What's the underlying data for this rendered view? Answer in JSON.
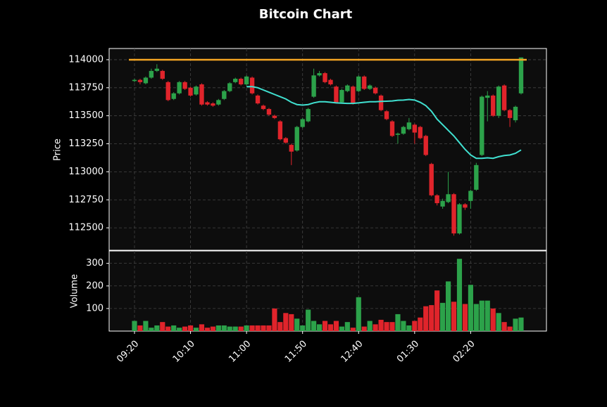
{
  "chart_data": {
    "type": "candlestick",
    "title": "Bitcoin Chart",
    "y_label": "Price",
    "volume_label": "Volume",
    "x": [
      "09:20",
      "09:25",
      "09:30",
      "09:35",
      "09:40",
      "09:45",
      "09:50",
      "09:55",
      "10:00",
      "10:05",
      "10:10",
      "10:15",
      "10:20",
      "10:25",
      "10:30",
      "10:35",
      "10:40",
      "10:45",
      "10:50",
      "10:55",
      "11:00",
      "11:05",
      "11:10",
      "11:15",
      "11:20",
      "11:25",
      "11:30",
      "11:35",
      "11:40",
      "11:45",
      "11:50",
      "11:55",
      "12:00",
      "12:05",
      "12:10",
      "12:15",
      "12:20",
      "12:25",
      "12:30",
      "12:35",
      "12:40",
      "12:45",
      "12:50",
      "12:55",
      "01:00",
      "01:05",
      "01:10",
      "01:15",
      "01:20",
      "01:25",
      "01:30",
      "01:35",
      "01:40",
      "01:45",
      "01:50",
      "01:55",
      "02:00",
      "02:05",
      "02:10",
      "02:15",
      "02:20",
      "02:25",
      "02:30",
      "02:35",
      "02:40",
      "02:45",
      "02:50",
      "02:55",
      "03:00",
      "03:05"
    ],
    "xticks": [
      "09:20",
      "10:10",
      "11:00",
      "11:50",
      "12:40",
      "01:30",
      "02:20"
    ],
    "open": [
      113810,
      113820,
      113790,
      113840,
      113900,
      113900,
      113800,
      113650,
      113700,
      113800,
      113750,
      113690,
      113780,
      113620,
      113610,
      113600,
      113650,
      113720,
      113800,
      113830,
      113780,
      113840,
      113680,
      113590,
      113560,
      113500,
      113450,
      113300,
      113240,
      113190,
      113400,
      113450,
      113670,
      113860,
      113880,
      113820,
      113760,
      113620,
      113720,
      113760,
      113720,
      113850,
      113740,
      113750,
      113680,
      113540,
      113450,
      113330,
      113340,
      113380,
      113420,
      113400,
      113320,
      113070,
      112790,
      112690,
      112730,
      112800,
      112450,
      112710,
      112740,
      112840,
      113150,
      113660,
      113680,
      113500,
      113770,
      113550,
      113460,
      113700
    ],
    "high": [
      113830,
      113830,
      113850,
      113920,
      113960,
      113910,
      113810,
      113710,
      113810,
      113810,
      113760,
      113770,
      113790,
      113630,
      113620,
      113650,
      113730,
      113800,
      113840,
      113840,
      113860,
      113850,
      113690,
      113600,
      113570,
      113510,
      113460,
      113310,
      113250,
      113410,
      113480,
      113570,
      113920,
      113900,
      113890,
      113830,
      113770,
      113740,
      113780,
      113770,
      113860,
      113860,
      113780,
      113760,
      113690,
      113550,
      113460,
      113350,
      113410,
      113480,
      113430,
      113410,
      113330,
      113080,
      112800,
      112760,
      113000,
      112810,
      112720,
      112720,
      112840,
      113080,
      113680,
      113720,
      113690,
      113770,
      113780,
      113560,
      113590,
      114020
    ],
    "low": [
      113800,
      113780,
      113780,
      113830,
      113890,
      113820,
      113630,
      113640,
      113690,
      113730,
      113670,
      113680,
      113590,
      113590,
      113580,
      113590,
      113640,
      113710,
      113790,
      113770,
      113770,
      113690,
      113600,
      113550,
      113500,
      113470,
      113280,
      113250,
      113060,
      113180,
      113390,
      113440,
      113660,
      113850,
      113790,
      113770,
      113610,
      113610,
      113710,
      113600,
      113710,
      113730,
      113730,
      113690,
      113540,
      113460,
      113310,
      113250,
      113330,
      113370,
      113250,
      113290,
      113140,
      112780,
      112700,
      112670,
      112720,
      112430,
      112440,
      112660,
      112670,
      112830,
      113140,
      113450,
      113490,
      113480,
      113540,
      113400,
      113440,
      113690
    ],
    "close": [
      113820,
      113800,
      113840,
      113900,
      113920,
      113830,
      113640,
      113700,
      113800,
      113740,
      113680,
      113760,
      113600,
      113600,
      113590,
      113640,
      113720,
      113790,
      113830,
      113780,
      113850,
      113700,
      113610,
      113560,
      113510,
      113480,
      113290,
      113260,
      113180,
      113400,
      113470,
      113560,
      113860,
      113880,
      113800,
      113780,
      113620,
      113730,
      113770,
      113610,
      113850,
      113740,
      113770,
      113700,
      113550,
      113470,
      113320,
      113340,
      113400,
      113440,
      113350,
      113300,
      113150,
      112790,
      112720,
      112740,
      112800,
      112450,
      112710,
      112680,
      112830,
      113060,
      113670,
      113680,
      113500,
      113760,
      113550,
      113480,
      113580,
      114020
    ],
    "volume": [
      45,
      25,
      45,
      15,
      25,
      40,
      20,
      25,
      15,
      20,
      25,
      15,
      30,
      15,
      20,
      25,
      25,
      20,
      20,
      20,
      25,
      25,
      25,
      25,
      25,
      100,
      40,
      80,
      75,
      55,
      25,
      95,
      45,
      30,
      45,
      30,
      45,
      20,
      40,
      15,
      150,
      20,
      45,
      30,
      50,
      40,
      40,
      75,
      45,
      25,
      45,
      60,
      110,
      115,
      180,
      125,
      220,
      130,
      320,
      120,
      205,
      120,
      135,
      135,
      100,
      80,
      40,
      20,
      55,
      60
    ],
    "moving_average": {
      "color": "#40e0d0",
      "values": [
        null,
        null,
        null,
        null,
        null,
        null,
        null,
        null,
        null,
        null,
        null,
        null,
        null,
        null,
        null,
        null,
        null,
        null,
        null,
        null,
        113760,
        113760,
        113750,
        113730,
        113710,
        113690,
        113670,
        113650,
        113620,
        113600,
        113595,
        113600,
        113615,
        113625,
        113625,
        113620,
        113615,
        113612,
        113610,
        113610,
        113615,
        113620,
        113625,
        113625,
        113628,
        113630,
        113632,
        113638,
        113640,
        113645,
        113640,
        113620,
        113590,
        113540,
        113470,
        113420,
        113370,
        113320,
        113260,
        113200,
        113150,
        113120,
        113120,
        113125,
        113120,
        113135,
        113145,
        113150,
        113165,
        113195
      ]
    },
    "resistance": {
      "value": 114000,
      "color": "#f5a623"
    },
    "up_color": "#2ca24a",
    "down_color": "#e0242b",
    "ylim": [
      112300,
      114100
    ],
    "yticks": [
      112500,
      112750,
      113000,
      113250,
      113500,
      113750,
      114000
    ],
    "volume_ylim": [
      0,
      355
    ],
    "volume_yticks": [
      100,
      200,
      300
    ],
    "grid": true
  }
}
